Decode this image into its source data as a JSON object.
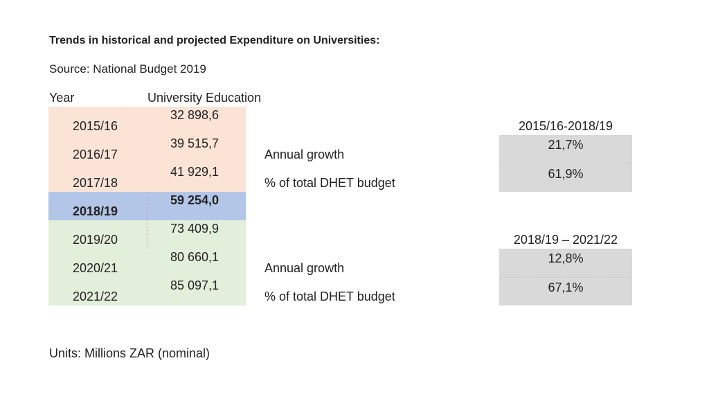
{
  "title": "Trends in historical and projected Expenditure on Universities:",
  "source": "Source: National Budget 2019",
  "headers": {
    "year": "Year",
    "value": "University Education"
  },
  "rows": [
    {
      "year": "2015/16",
      "value": "32 898,6",
      "group": "historical"
    },
    {
      "year": "2016/17",
      "value": "39 515,7",
      "group": "historical"
    },
    {
      "year": "2017/18",
      "value": "41 929,1",
      "group": "historical"
    },
    {
      "year": "2018/19",
      "value": "59 254,0",
      "group": "current"
    },
    {
      "year": "2019/20",
      "value": "73 409,9",
      "group": "projected"
    },
    {
      "year": "2020/21",
      "value": "80 660,1",
      "group": "projected"
    },
    {
      "year": "2021/22",
      "value": "85 097,1",
      "group": "projected"
    }
  ],
  "summaries": [
    {
      "period": "2015/16-2018/19",
      "annual_growth_label": "Annual growth",
      "annual_growth": "21,7%",
      "share_label": "% of total DHET budget",
      "share": "61,9%"
    },
    {
      "period": "2018/19 – 2021/22",
      "annual_growth_label": "Annual growth",
      "annual_growth": "12,8%",
      "share_label": "% of total DHET budget",
      "share": "67,1%"
    }
  ],
  "units": "Units: Millions ZAR (nominal)",
  "colors": {
    "historical": "#fbe4d6",
    "current": "#b4c6e7",
    "projected": "#e2efda",
    "summary_box": "#d9d9d9"
  }
}
